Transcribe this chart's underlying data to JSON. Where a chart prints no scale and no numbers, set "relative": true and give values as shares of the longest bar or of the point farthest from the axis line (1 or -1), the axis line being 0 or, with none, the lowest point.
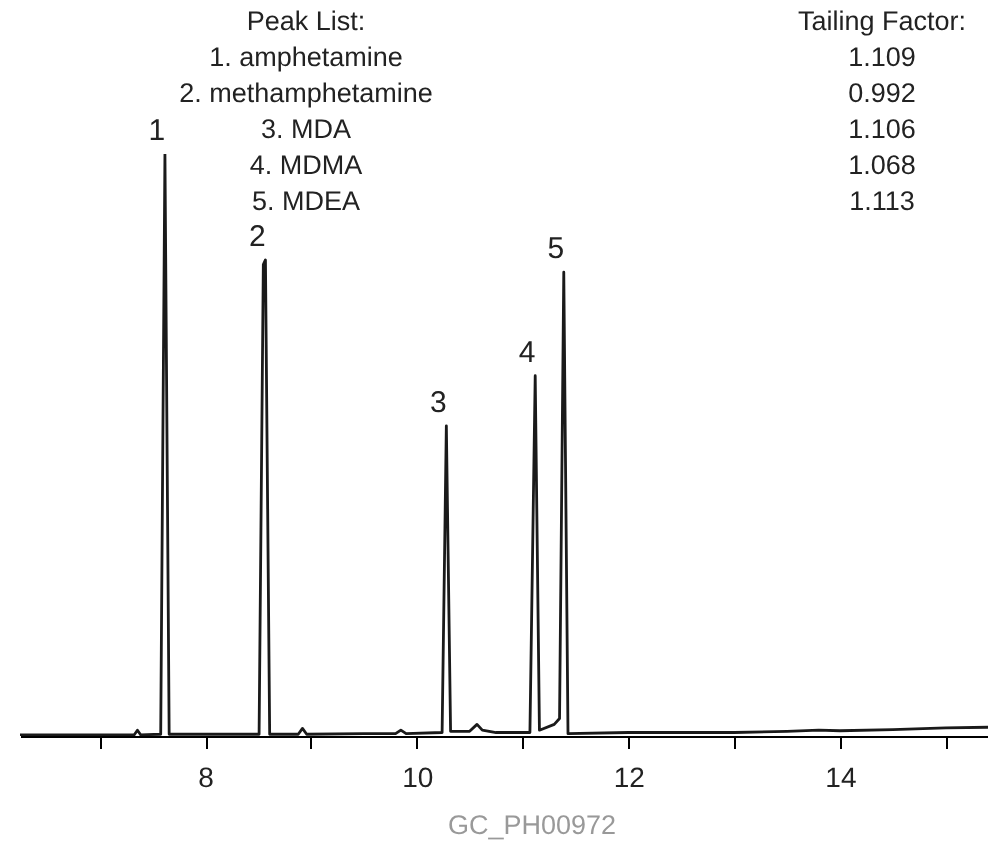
{
  "chart_data": {
    "type": "line",
    "relative": true,
    "x": [
      6.25,
      7.0,
      7.33,
      7.36,
      7.39,
      7.58,
      7.62,
      7.66,
      7.9,
      8.51,
      8.55,
      8.57,
      8.61,
      8.88,
      8.92,
      8.96,
      9.5,
      9.8,
      9.85,
      9.9,
      10.24,
      10.28,
      10.32,
      10.5,
      10.57,
      10.62,
      10.75,
      11.07,
      11.12,
      11.16,
      11.3,
      11.35,
      11.39,
      11.43,
      12.0,
      12.5,
      13.0,
      13.5,
      13.8,
      14.0,
      14.5,
      15.0,
      15.4
    ],
    "series": [
      {
        "color": "#1a1a1a",
        "values": [
          0.002,
          0.002,
          0.002,
          0.01,
          0.002,
          0.003,
          1.0,
          0.003,
          0.003,
          0.003,
          0.81,
          0.818,
          0.003,
          0.003,
          0.013,
          0.003,
          0.004,
          0.004,
          0.01,
          0.004,
          0.006,
          0.533,
          0.008,
          0.008,
          0.02,
          0.01,
          0.006,
          0.006,
          0.619,
          0.01,
          0.02,
          0.03,
          0.797,
          0.004,
          0.006,
          0.006,
          0.006,
          0.008,
          0.01,
          0.009,
          0.011,
          0.014,
          0.015
        ]
      }
    ],
    "xlim": [
      6.25,
      15.4
    ],
    "xticks": [
      {
        "value": 7,
        "label": null
      },
      8,
      {
        "value": 9,
        "label": null
      },
      10,
      {
        "value": 11,
        "label": null
      },
      12,
      {
        "value": 13,
        "label": null
      },
      14,
      {
        "value": 15,
        "label": null
      }
    ],
    "annotations": [
      {
        "text": "1",
        "x": 7.62,
        "y": 1.0
      },
      {
        "text": "2",
        "x": 8.57,
        "y": 0.818
      },
      {
        "text": "3",
        "x": 10.28,
        "y": 0.533
      },
      {
        "text": "4",
        "x": 11.12,
        "y": 0.619
      },
      {
        "text": "5",
        "x": 11.39,
        "y": 0.797
      },
      "Peak List:",
      "Tailing Factor:",
      "1. amphetamine",
      "1.109",
      "2. methamphetamine",
      "0.992",
      "3. MDA",
      "1.106",
      "4. MDMA",
      "1.068",
      "5. MDEA",
      "1.113",
      "GC_PH00972"
    ],
    "legend": false,
    "grid": false,
    "marker": "none",
    "line_style": "solid"
  }
}
